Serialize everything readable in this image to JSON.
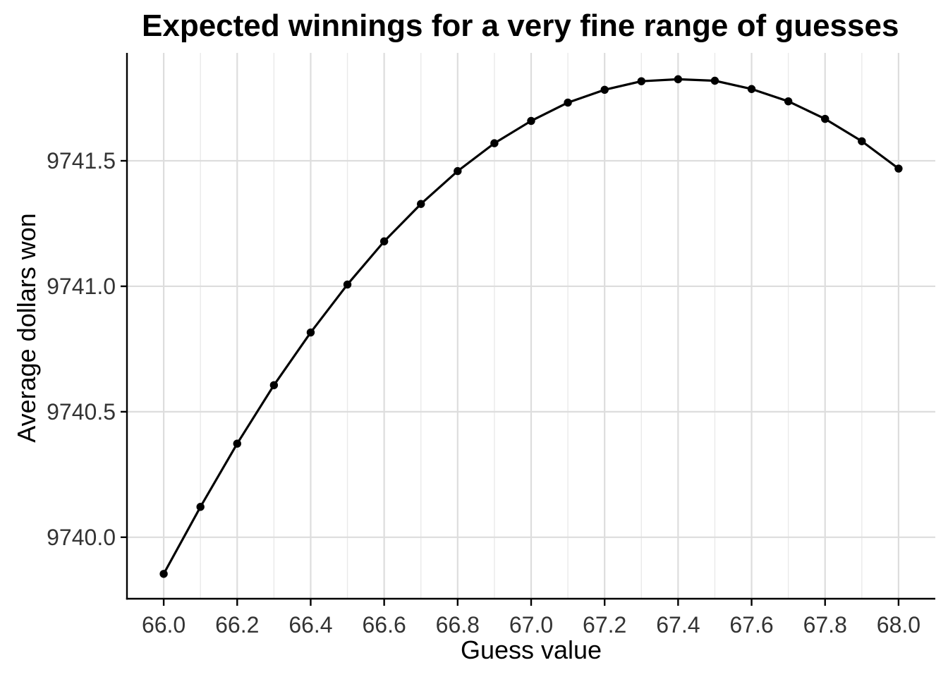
{
  "chart_data": {
    "type": "line",
    "title": "Expected winnings for a very fine range of guesses",
    "xlabel": "Guess value",
    "ylabel": "Average dollars won",
    "legend": "none",
    "marker": "filled-circle",
    "series": [
      {
        "name": "expected-winnings",
        "x": [
          66.0,
          66.1,
          66.2,
          66.3,
          66.4,
          66.5,
          66.6,
          66.7,
          66.8,
          66.9,
          67.0,
          67.1,
          67.2,
          67.3,
          67.4,
          67.5,
          67.6,
          67.7,
          67.8,
          67.9,
          68.0
        ],
        "y": [
          9739.854,
          9740.121,
          9740.373,
          9740.606,
          9740.816,
          9741.007,
          9741.179,
          9741.328,
          9741.459,
          9741.57,
          9741.659,
          9741.732,
          9741.783,
          9741.817,
          9741.825,
          9741.819,
          9741.786,
          9741.737,
          9741.667,
          9741.578,
          9741.469
        ]
      }
    ],
    "x_ticks": {
      "values": [
        66.0,
        66.2,
        66.4,
        66.6,
        66.8,
        67.0,
        67.2,
        67.4,
        67.6,
        67.8,
        68.0
      ],
      "labels": [
        "66.0",
        "66.2",
        "66.4",
        "66.6",
        "66.8",
        "67.0",
        "67.2",
        "67.4",
        "67.6",
        "67.8",
        "68.0"
      ]
    },
    "x_minor_gridlines": [
      66.1,
      66.3,
      66.5,
      66.7,
      66.9,
      67.1,
      67.3,
      67.5,
      67.7,
      67.9
    ],
    "y_ticks": {
      "values": [
        9740.0,
        9740.5,
        9741.0,
        9741.5
      ],
      "labels": [
        "9740.0",
        "9740.5",
        "9741.0",
        "9741.5"
      ]
    },
    "xlim": [
      65.9,
      68.1
    ],
    "ylim": [
      9739.755,
      9741.93
    ],
    "grid": "vertical major and minor gridlines; horizontal major gridlines only; left and bottom black axis lines",
    "colors": {
      "line": "#000000",
      "point": "#000000",
      "grid_major": "#DDDDDD",
      "grid_minor": "#E9E9E9",
      "axis_line": "#000000",
      "tick_mark": "#000000",
      "tick_text": "#333333",
      "title_text": "#000000",
      "background": "#FFFFFF"
    }
  }
}
